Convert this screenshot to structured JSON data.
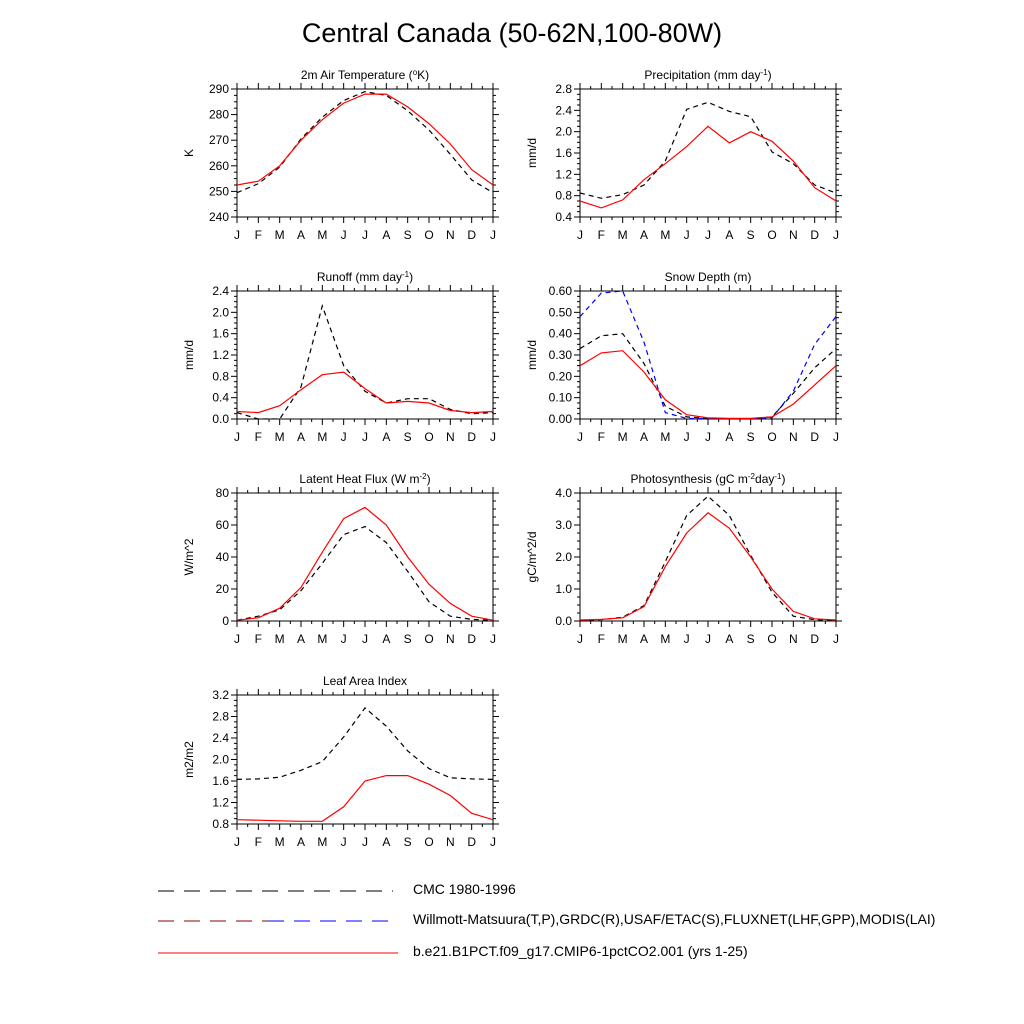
{
  "title": "Central Canada (50-62N,100-80W)",
  "months": [
    "J",
    "F",
    "M",
    "A",
    "M",
    "J",
    "J",
    "A",
    "S",
    "O",
    "N",
    "D",
    "J"
  ],
  "colors": {
    "model": "#ff0000",
    "cmc": "#000000",
    "obs_black": "#000000",
    "obs_blue": "#0000ff"
  },
  "legend": [
    {
      "id": "cmc",
      "label": "CMC 1980-1996",
      "style": "dashed",
      "colors": [
        "#000000"
      ]
    },
    {
      "id": "obs",
      "label": "Willmott-Matsuura(T,P),GRDC(R),USAF/ETAC(S),FLUXNET(LHF,GPP),MODIS(LAI)",
      "style": "dashed",
      "colors": [
        "#8b0000",
        "#0000ff"
      ]
    },
    {
      "id": "model",
      "label": "b.e21.B1PCT.f09_g17.CMIP6-1pctCO2.001 (yrs 1-25)",
      "style": "solid",
      "colors": [
        "#ff0000"
      ]
    }
  ],
  "chart_data": [
    {
      "type": "line",
      "title": "2m Air Temperature (°K)",
      "title_parts": [
        "2m Air Temperature (",
        "o",
        "K)"
      ],
      "ylabel": "K",
      "ylim": [
        240,
        290
      ],
      "yticks": [
        "240",
        "250",
        "260",
        "270",
        "280",
        "290"
      ],
      "yticks_values": [
        240,
        250,
        260,
        270,
        280,
        290
      ],
      "series": [
        {
          "name": "model",
          "style": "solid",
          "color": "#ff0000",
          "values": [
            252.5,
            254,
            260,
            270,
            278,
            284.5,
            288,
            288,
            283,
            276.5,
            268.5,
            258.5,
            252.5
          ]
        },
        {
          "name": "obs",
          "style": "dashed",
          "color": "#000000",
          "values": [
            249.5,
            253,
            259.5,
            270.5,
            279,
            285.5,
            289,
            287.5,
            281.5,
            274,
            264.5,
            254.5,
            249.5
          ]
        }
      ]
    },
    {
      "type": "line",
      "title": "Precipitation (mm day-1)",
      "title_parts": [
        "Precipitation (mm day",
        "-1",
        ")"
      ],
      "ylabel": "mm/d",
      "ylim": [
        0.4,
        2.8
      ],
      "yticks": [
        "0.4",
        "0.8",
        "1.2",
        "1.6",
        "2.0",
        "2.4",
        "2.8"
      ],
      "yticks_values": [
        0.4,
        0.8,
        1.2,
        1.6,
        2.0,
        2.4,
        2.8
      ],
      "series": [
        {
          "name": "model",
          "style": "solid",
          "color": "#ff0000",
          "values": [
            0.7,
            0.57,
            0.72,
            1.1,
            1.4,
            1.72,
            2.1,
            1.79,
            2.0,
            1.82,
            1.45,
            0.95,
            0.7
          ]
        },
        {
          "name": "obs",
          "style": "dashed",
          "color": "#000000",
          "values": [
            0.85,
            0.75,
            0.82,
            1.0,
            1.45,
            2.42,
            2.55,
            2.38,
            2.28,
            1.62,
            1.4,
            1.0,
            0.85
          ]
        }
      ]
    },
    {
      "type": "line",
      "title": "Runoff (mm day-1)",
      "title_parts": [
        "Runoff (mm day",
        "-1",
        ")"
      ],
      "ylabel": "mm/d",
      "ylim": [
        0,
        2.4
      ],
      "yticks": [
        "0.0",
        "0.4",
        "0.8",
        "1.2",
        "1.6",
        "2.0",
        "2.4"
      ],
      "yticks_values": [
        0,
        0.4,
        0.8,
        1.2,
        1.6,
        2.0,
        2.4
      ],
      "series": [
        {
          "name": "model",
          "style": "solid",
          "color": "#ff0000",
          "values": [
            0.14,
            0.12,
            0.25,
            0.55,
            0.83,
            0.88,
            0.57,
            0.3,
            0.33,
            0.3,
            0.16,
            0.12,
            0.14
          ]
        },
        {
          "name": "obs",
          "style": "dashed",
          "color": "#000000",
          "values": [
            0.12,
            0.0,
            0.0,
            0.6,
            2.12,
            1.0,
            0.52,
            0.3,
            0.38,
            0.38,
            0.18,
            0.1,
            0.12
          ]
        }
      ]
    },
    {
      "type": "line",
      "title": "Snow Depth (m)",
      "title_parts": [
        "Snow Depth (m)"
      ],
      "ylabel": "mm/d",
      "ylim": [
        0,
        0.6
      ],
      "yticks": [
        "0.00",
        "0.10",
        "0.20",
        "0.30",
        "0.40",
        "0.50",
        "0.60"
      ],
      "yticks_values": [
        0,
        0.1,
        0.2,
        0.3,
        0.4,
        0.5,
        0.6
      ],
      "series": [
        {
          "name": "model",
          "style": "solid",
          "color": "#ff0000",
          "values": [
            0.25,
            0.31,
            0.32,
            0.22,
            0.09,
            0.02,
            0.005,
            0.003,
            0.003,
            0.01,
            0.07,
            0.16,
            0.25
          ]
        },
        {
          "name": "cmc",
          "style": "dashed",
          "color": "#000000",
          "values": [
            0.33,
            0.39,
            0.4,
            0.26,
            0.06,
            0.01,
            0.003,
            0.002,
            0.002,
            0.01,
            0.12,
            0.24,
            0.33
          ]
        },
        {
          "name": "obs",
          "style": "dashed",
          "color": "#0000ff",
          "values": [
            0.48,
            0.59,
            0.6,
            0.36,
            0.03,
            0.003,
            0.002,
            0.002,
            0.002,
            0.005,
            0.13,
            0.35,
            0.48
          ]
        }
      ]
    },
    {
      "type": "line",
      "title": "Latent Heat Flux (W m-2)",
      "title_parts": [
        "Latent Heat Flux (W m",
        "-2",
        ")"
      ],
      "ylabel": "W/m^2",
      "ylim": [
        0,
        80
      ],
      "yticks": [
        "0",
        "20",
        "40",
        "60",
        "80"
      ],
      "yticks_values": [
        0,
        20,
        40,
        60,
        80
      ],
      "series": [
        {
          "name": "model",
          "style": "solid",
          "color": "#ff0000",
          "values": [
            0.5,
            2,
            8,
            21,
            43,
            64,
            71,
            60,
            40,
            23,
            11,
            3,
            0.5
          ]
        },
        {
          "name": "obs",
          "style": "dashed",
          "color": "#000000",
          "values": [
            0.5,
            3,
            7,
            19,
            36,
            54,
            59,
            49,
            31,
            12,
            3,
            1,
            0.5
          ]
        }
      ]
    },
    {
      "type": "line",
      "title": "Photosynthesis (gC m-2day-1)",
      "title_parts": [
        "Photosynthesis (gC m",
        "-2",
        "day",
        "-1",
        ")"
      ],
      "ylabel": "gC/m^2/d",
      "ylim": [
        0,
        4
      ],
      "yticks": [
        "0.0",
        "1.0",
        "2.0",
        "3.0",
        "4.0"
      ],
      "yticks_values": [
        0,
        1,
        2,
        3,
        4
      ],
      "series": [
        {
          "name": "model",
          "style": "solid",
          "color": "#ff0000",
          "values": [
            0.03,
            0.05,
            0.1,
            0.45,
            1.7,
            2.75,
            3.38,
            2.9,
            2.0,
            1.0,
            0.3,
            0.07,
            0.03
          ]
        },
        {
          "name": "obs",
          "style": "dashed",
          "color": "#000000",
          "values": [
            0.02,
            0.04,
            0.12,
            0.48,
            1.85,
            3.3,
            3.9,
            3.3,
            2.05,
            0.9,
            0.15,
            0.04,
            0.02
          ]
        }
      ]
    },
    {
      "type": "line",
      "title": "Leaf Area Index",
      "title_parts": [
        "Leaf Area Index"
      ],
      "ylabel": "m2/m2",
      "ylim": [
        0.8,
        3.2
      ],
      "yticks": [
        "0.8",
        "1.2",
        "1.6",
        "2.0",
        "2.4",
        "2.8",
        "3.2"
      ],
      "yticks_values": [
        0.8,
        1.2,
        1.6,
        2.0,
        2.4,
        2.8,
        3.2
      ],
      "series": [
        {
          "name": "model",
          "style": "solid",
          "color": "#ff0000",
          "values": [
            0.88,
            0.87,
            0.86,
            0.85,
            0.85,
            1.12,
            1.6,
            1.7,
            1.7,
            1.54,
            1.33,
            1.0,
            0.88
          ]
        },
        {
          "name": "obs",
          "style": "dashed",
          "color": "#000000",
          "values": [
            1.63,
            1.64,
            1.67,
            1.8,
            1.96,
            2.42,
            2.96,
            2.62,
            2.16,
            1.83,
            1.66,
            1.64,
            1.63
          ]
        }
      ]
    }
  ]
}
